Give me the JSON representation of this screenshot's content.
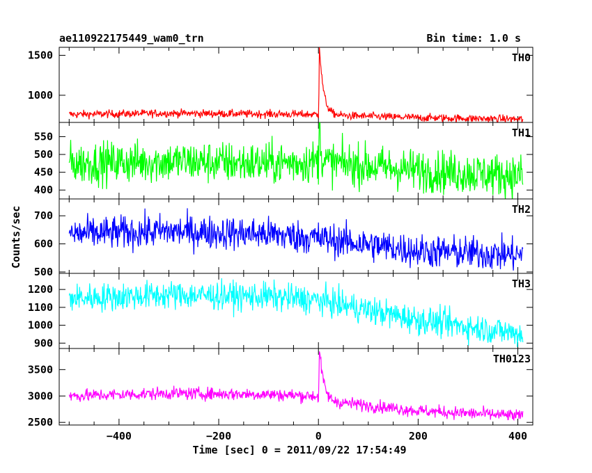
{
  "header": {
    "title_left": "ae110922175449_wam0_trn",
    "title_right": "Bin time: 1.0 s"
  },
  "axes": {
    "xlabel": "Time [sec] 0 = 2011/09/22 17:54:49",
    "ylabel": "Counts/sec"
  },
  "chart_data": {
    "type": "line",
    "title": "ae110922175449_wam0_trn",
    "subtitle": "Bin time: 1.0 s",
    "xlabel": "Time [sec] 0 = 2011/09/22 17:54:49",
    "ylabel": "Counts/sec",
    "xlim": [
      -520,
      430
    ],
    "x_ticks": [
      -400,
      -200,
      0,
      200,
      400
    ],
    "x_range_data": [
      -500,
      410
    ],
    "grid": false,
    "panels": [
      {
        "name": "TH0",
        "color": "#ff0000",
        "ylim": [
          660,
          1600
        ],
        "yticks": [
          1000,
          1500
        ],
        "trend": [
          [
            -500,
            760
          ],
          [
            -300,
            775
          ],
          [
            -100,
            765
          ],
          [
            -5,
            760
          ],
          [
            20,
            750
          ],
          [
            200,
            720
          ],
          [
            410,
            700
          ]
        ],
        "noise": 25,
        "peak": {
          "x": 2,
          "y": 1620,
          "decay_s": 8
        }
      },
      {
        "name": "TH1",
        "color": "#00ff00",
        "ylim": [
          375,
          590
        ],
        "yticks": [
          400,
          450,
          500,
          550
        ],
        "trend": [
          [
            -500,
            475
          ],
          [
            -300,
            480
          ],
          [
            -100,
            475
          ],
          [
            0,
            480
          ],
          [
            200,
            455
          ],
          [
            410,
            440
          ]
        ],
        "noise": 30,
        "peak": {
          "x": 2,
          "y": 590,
          "decay_s": 3
        }
      },
      {
        "name": "TH2",
        "color": "#0000ff",
        "ylim": [
          495,
          760
        ],
        "yticks": [
          500,
          600,
          700
        ],
        "trend": [
          [
            -500,
            635
          ],
          [
            -300,
            645
          ],
          [
            -100,
            635
          ],
          [
            0,
            620
          ],
          [
            200,
            575
          ],
          [
            410,
            560
          ]
        ],
        "noise": 30
      },
      {
        "name": "TH3",
        "color": "#00ffff",
        "ylim": [
          870,
          1290
        ],
        "yticks": [
          900,
          1000,
          1100,
          1200
        ],
        "trend": [
          [
            -500,
            1150
          ],
          [
            -300,
            1170
          ],
          [
            -100,
            1160
          ],
          [
            0,
            1140
          ],
          [
            200,
            1030
          ],
          [
            410,
            950
          ]
        ],
        "noise": 40
      },
      {
        "name": "TH0123",
        "color": "#ff00ff",
        "ylim": [
          2450,
          3900
        ],
        "yticks": [
          2500,
          3000,
          3500
        ],
        "trend": [
          [
            -500,
            3000
          ],
          [
            -300,
            3050
          ],
          [
            -100,
            3030
          ],
          [
            -5,
            3000
          ],
          [
            20,
            2900
          ],
          [
            200,
            2720
          ],
          [
            410,
            2620
          ]
        ],
        "noise": 60,
        "peak": {
          "x": 2,
          "y": 3880,
          "decay_s": 8
        }
      }
    ]
  }
}
